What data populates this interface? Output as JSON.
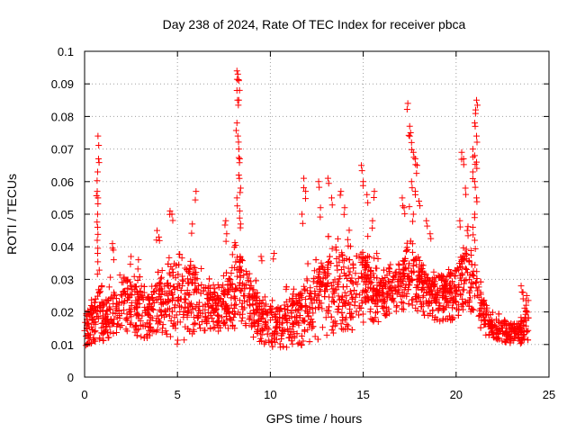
{
  "chart_data": {
    "type": "scatter",
    "title": "Day 238 of 2024, Rate Of TEC Index for receiver pbca",
    "xlabel": "GPS time / hours",
    "ylabel": "ROTI / TECUs",
    "xlim": [
      0,
      25
    ],
    "ylim": [
      0,
      0.1
    ],
    "xticks": [
      0,
      5,
      10,
      15,
      20,
      25
    ],
    "xtick_labels": [
      "0",
      "5",
      "10",
      "15",
      "20",
      "25"
    ],
    "yticks": [
      0,
      0.01,
      0.02,
      0.03,
      0.04,
      0.05,
      0.06,
      0.07,
      0.08,
      0.09,
      0.1
    ],
    "ytick_labels": [
      "0",
      "0.01",
      "0.02",
      "0.03",
      "0.04",
      "0.05",
      "0.06",
      "0.07",
      "0.08",
      "0.09",
      "0.1"
    ],
    "grid": true,
    "marker": "+",
    "marker_color": "#ff0000",
    "envelope": {
      "x": [
        0,
        0.5,
        0.7,
        1,
        1.5,
        2,
        2.5,
        3,
        3.5,
        4,
        4.5,
        5,
        5.5,
        6,
        6.5,
        7,
        7.5,
        8,
        8.3,
        8.7,
        9,
        9.5,
        10,
        10.5,
        11,
        11.5,
        12,
        12.5,
        13,
        13.5,
        14,
        14.5,
        15,
        15.5,
        16,
        16.5,
        17,
        17.5,
        18,
        18.5,
        19,
        19.5,
        20,
        20.5,
        21,
        21.5,
        22,
        22.5,
        23,
        23.5,
        23.9
      ],
      "low": [
        0.008,
        0.009,
        0.008,
        0.009,
        0.01,
        0.012,
        0.01,
        0.01,
        0.01,
        0.01,
        0.01,
        0.006,
        0.008,
        0.01,
        0.012,
        0.012,
        0.012,
        0.012,
        0.012,
        0.012,
        0.01,
        0.008,
        0.007,
        0.007,
        0.007,
        0.007,
        0.008,
        0.008,
        0.009,
        0.01,
        0.01,
        0.01,
        0.012,
        0.014,
        0.016,
        0.018,
        0.018,
        0.018,
        0.018,
        0.016,
        0.015,
        0.014,
        0.016,
        0.018,
        0.016,
        0.012,
        0.01,
        0.01,
        0.009,
        0.009,
        0.01
      ],
      "high": [
        0.022,
        0.025,
        0.04,
        0.025,
        0.03,
        0.035,
        0.035,
        0.032,
        0.028,
        0.035,
        0.04,
        0.042,
        0.04,
        0.038,
        0.032,
        0.03,
        0.035,
        0.04,
        0.045,
        0.04,
        0.032,
        0.03,
        0.025,
        0.025,
        0.028,
        0.03,
        0.035,
        0.04,
        0.042,
        0.045,
        0.042,
        0.045,
        0.045,
        0.04,
        0.035,
        0.035,
        0.04,
        0.05,
        0.04,
        0.035,
        0.035,
        0.035,
        0.04,
        0.045,
        0.04,
        0.025,
        0.02,
        0.02,
        0.018,
        0.02,
        0.025
      ]
    },
    "spikes": [
      {
        "x": 0.72,
        "y": 0.074
      },
      {
        "x": 0.75,
        "y": 0.067
      },
      {
        "x": 0.7,
        "y": 0.063
      },
      {
        "x": 0.68,
        "y": 0.057
      },
      {
        "x": 0.72,
        "y": 0.055
      },
      {
        "x": 0.7,
        "y": 0.05
      },
      {
        "x": 0.7,
        "y": 0.046
      },
      {
        "x": 0.68,
        "y": 0.042
      },
      {
        "x": 0.7,
        "y": 0.038
      },
      {
        "x": 1.5,
        "y": 0.041
      },
      {
        "x": 1.55,
        "y": 0.039
      },
      {
        "x": 2.5,
        "y": 0.037
      },
      {
        "x": 2.9,
        "y": 0.036
      },
      {
        "x": 3.9,
        "y": 0.045
      },
      {
        "x": 4.0,
        "y": 0.043
      },
      {
        "x": 4.6,
        "y": 0.051
      },
      {
        "x": 4.7,
        "y": 0.05
      },
      {
        "x": 6.0,
        "y": 0.057
      },
      {
        "x": 5.8,
        "y": 0.047
      },
      {
        "x": 7.6,
        "y": 0.048
      },
      {
        "x": 7.65,
        "y": 0.044
      },
      {
        "x": 8.2,
        "y": 0.094
      },
      {
        "x": 8.25,
        "y": 0.093
      },
      {
        "x": 8.3,
        "y": 0.091
      },
      {
        "x": 8.2,
        "y": 0.088
      },
      {
        "x": 8.3,
        "y": 0.085
      },
      {
        "x": 8.2,
        "y": 0.078
      },
      {
        "x": 8.25,
        "y": 0.074
      },
      {
        "x": 8.3,
        "y": 0.07
      },
      {
        "x": 8.35,
        "y": 0.067
      },
      {
        "x": 8.3,
        "y": 0.062
      },
      {
        "x": 8.4,
        "y": 0.058
      },
      {
        "x": 8.2,
        "y": 0.055
      },
      {
        "x": 8.35,
        "y": 0.051
      },
      {
        "x": 8.4,
        "y": 0.047
      },
      {
        "x": 9.5,
        "y": 0.037
      },
      {
        "x": 10.2,
        "y": 0.038
      },
      {
        "x": 11.7,
        "y": 0.05
      },
      {
        "x": 11.8,
        "y": 0.061
      },
      {
        "x": 11.9,
        "y": 0.057
      },
      {
        "x": 12.6,
        "y": 0.06
      },
      {
        "x": 12.7,
        "y": 0.052
      },
      {
        "x": 13.1,
        "y": 0.061
      },
      {
        "x": 13.3,
        "y": 0.055
      },
      {
        "x": 13.8,
        "y": 0.057
      },
      {
        "x": 14.0,
        "y": 0.052
      },
      {
        "x": 14.9,
        "y": 0.065
      },
      {
        "x": 15.0,
        "y": 0.06
      },
      {
        "x": 15.2,
        "y": 0.056
      },
      {
        "x": 15.6,
        "y": 0.057
      },
      {
        "x": 15.5,
        "y": 0.048
      },
      {
        "x": 17.1,
        "y": 0.055
      },
      {
        "x": 17.2,
        "y": 0.052
      },
      {
        "x": 17.4,
        "y": 0.084
      },
      {
        "x": 17.5,
        "y": 0.077
      },
      {
        "x": 17.55,
        "y": 0.075
      },
      {
        "x": 17.6,
        "y": 0.072
      },
      {
        "x": 17.7,
        "y": 0.069
      },
      {
        "x": 17.8,
        "y": 0.067
      },
      {
        "x": 17.9,
        "y": 0.065
      },
      {
        "x": 17.6,
        "y": 0.06
      },
      {
        "x": 17.8,
        "y": 0.057
      },
      {
        "x": 18.0,
        "y": 0.054
      },
      {
        "x": 17.7,
        "y": 0.05
      },
      {
        "x": 18.4,
        "y": 0.048
      },
      {
        "x": 18.6,
        "y": 0.044
      },
      {
        "x": 20.3,
        "y": 0.069
      },
      {
        "x": 20.4,
        "y": 0.067
      },
      {
        "x": 20.5,
        "y": 0.058
      },
      {
        "x": 20.2,
        "y": 0.048
      },
      {
        "x": 20.6,
        "y": 0.045
      },
      {
        "x": 21.1,
        "y": 0.085
      },
      {
        "x": 21.05,
        "y": 0.082
      },
      {
        "x": 21.0,
        "y": 0.078
      },
      {
        "x": 21.1,
        "y": 0.074
      },
      {
        "x": 20.9,
        "y": 0.07
      },
      {
        "x": 21.0,
        "y": 0.068
      },
      {
        "x": 21.1,
        "y": 0.066
      },
      {
        "x": 20.9,
        "y": 0.063
      },
      {
        "x": 21.0,
        "y": 0.06
      },
      {
        "x": 21.1,
        "y": 0.055
      },
      {
        "x": 21.0,
        "y": 0.05
      },
      {
        "x": 20.9,
        "y": 0.046
      },
      {
        "x": 21.0,
        "y": 0.042
      },
      {
        "x": 23.5,
        "y": 0.028
      },
      {
        "x": 23.6,
        "y": 0.026
      },
      {
        "x": 23.8,
        "y": 0.025
      }
    ]
  }
}
